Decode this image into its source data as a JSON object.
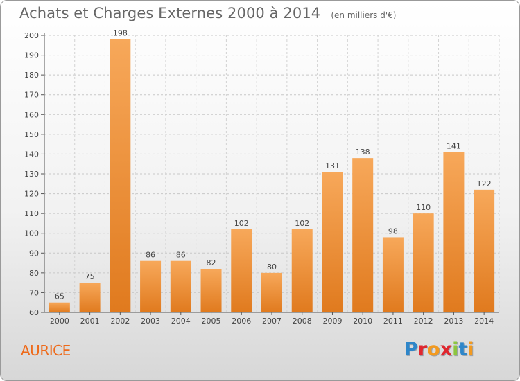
{
  "chart_data": {
    "type": "bar",
    "title": "Achats et Charges Externes 2000 à 2014",
    "subtitle": "(en milliers d'€)",
    "categories": [
      "2000",
      "2001",
      "2002",
      "2003",
      "2004",
      "2005",
      "2006",
      "2007",
      "2008",
      "2009",
      "2010",
      "2011",
      "2012",
      "2013",
      "2014"
    ],
    "values": [
      65,
      75,
      198,
      86,
      86,
      82,
      102,
      80,
      102,
      131,
      138,
      98,
      110,
      141,
      122
    ],
    "data_labels": [
      "65",
      "75",
      "198",
      "86",
      "86",
      "82",
      "102",
      "80",
      "102",
      "131",
      "138",
      "98",
      "110",
      "141",
      "122"
    ],
    "ylim": [
      60,
      200
    ],
    "yticks": [
      60,
      70,
      80,
      90,
      100,
      110,
      120,
      130,
      140,
      150,
      160,
      170,
      180,
      190,
      200
    ],
    "xlabel": "",
    "ylabel": "",
    "grid": true,
    "bar_color_top": "#f7a85a",
    "bar_color_bottom": "#e07a1e"
  },
  "footer": {
    "commune": "AURICE",
    "logo_letters": [
      {
        "ch": "P",
        "color": "#2e86c9"
      },
      {
        "ch": "r",
        "color": "#e0262e"
      },
      {
        "ch": "o",
        "color": "#f39a1f"
      },
      {
        "ch": "x",
        "color": "#e0262e"
      },
      {
        "ch": "i",
        "color": "#8dc63f"
      },
      {
        "ch": "t",
        "color": "#2e86c9"
      },
      {
        "ch": "i",
        "color": "#f39a1f"
      }
    ]
  }
}
